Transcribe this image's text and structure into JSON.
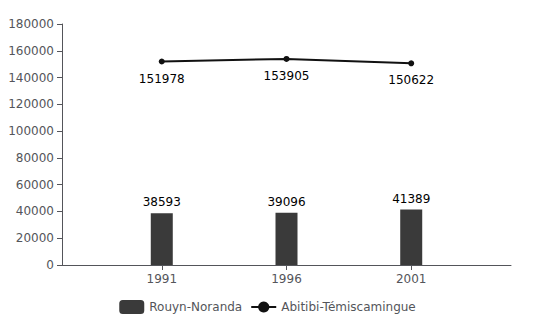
{
  "chart_data": {
    "type": "bar",
    "x": [
      1991,
      1996,
      2001
    ],
    "series": [
      {
        "name": "Rouyn-Noranda",
        "type": "bar",
        "color": "#3a3a3a",
        "values": [
          38593,
          39096,
          41389
        ]
      },
      {
        "name": "Abitibi-Témiscamingue",
        "type": "line",
        "color": "#111111",
        "marker": "circle",
        "values": [
          151978,
          153905,
          150622
        ]
      }
    ],
    "xlim": [
      1987,
      2005
    ],
    "xticks": [
      1991,
      1996,
      2001
    ],
    "ylim": [
      0,
      180000
    ],
    "yticks": [
      0,
      20000,
      40000,
      60000,
      80000,
      100000,
      120000,
      140000,
      160000,
      180000
    ],
    "grid": false,
    "legend": "bottom",
    "data_labels": true
  }
}
